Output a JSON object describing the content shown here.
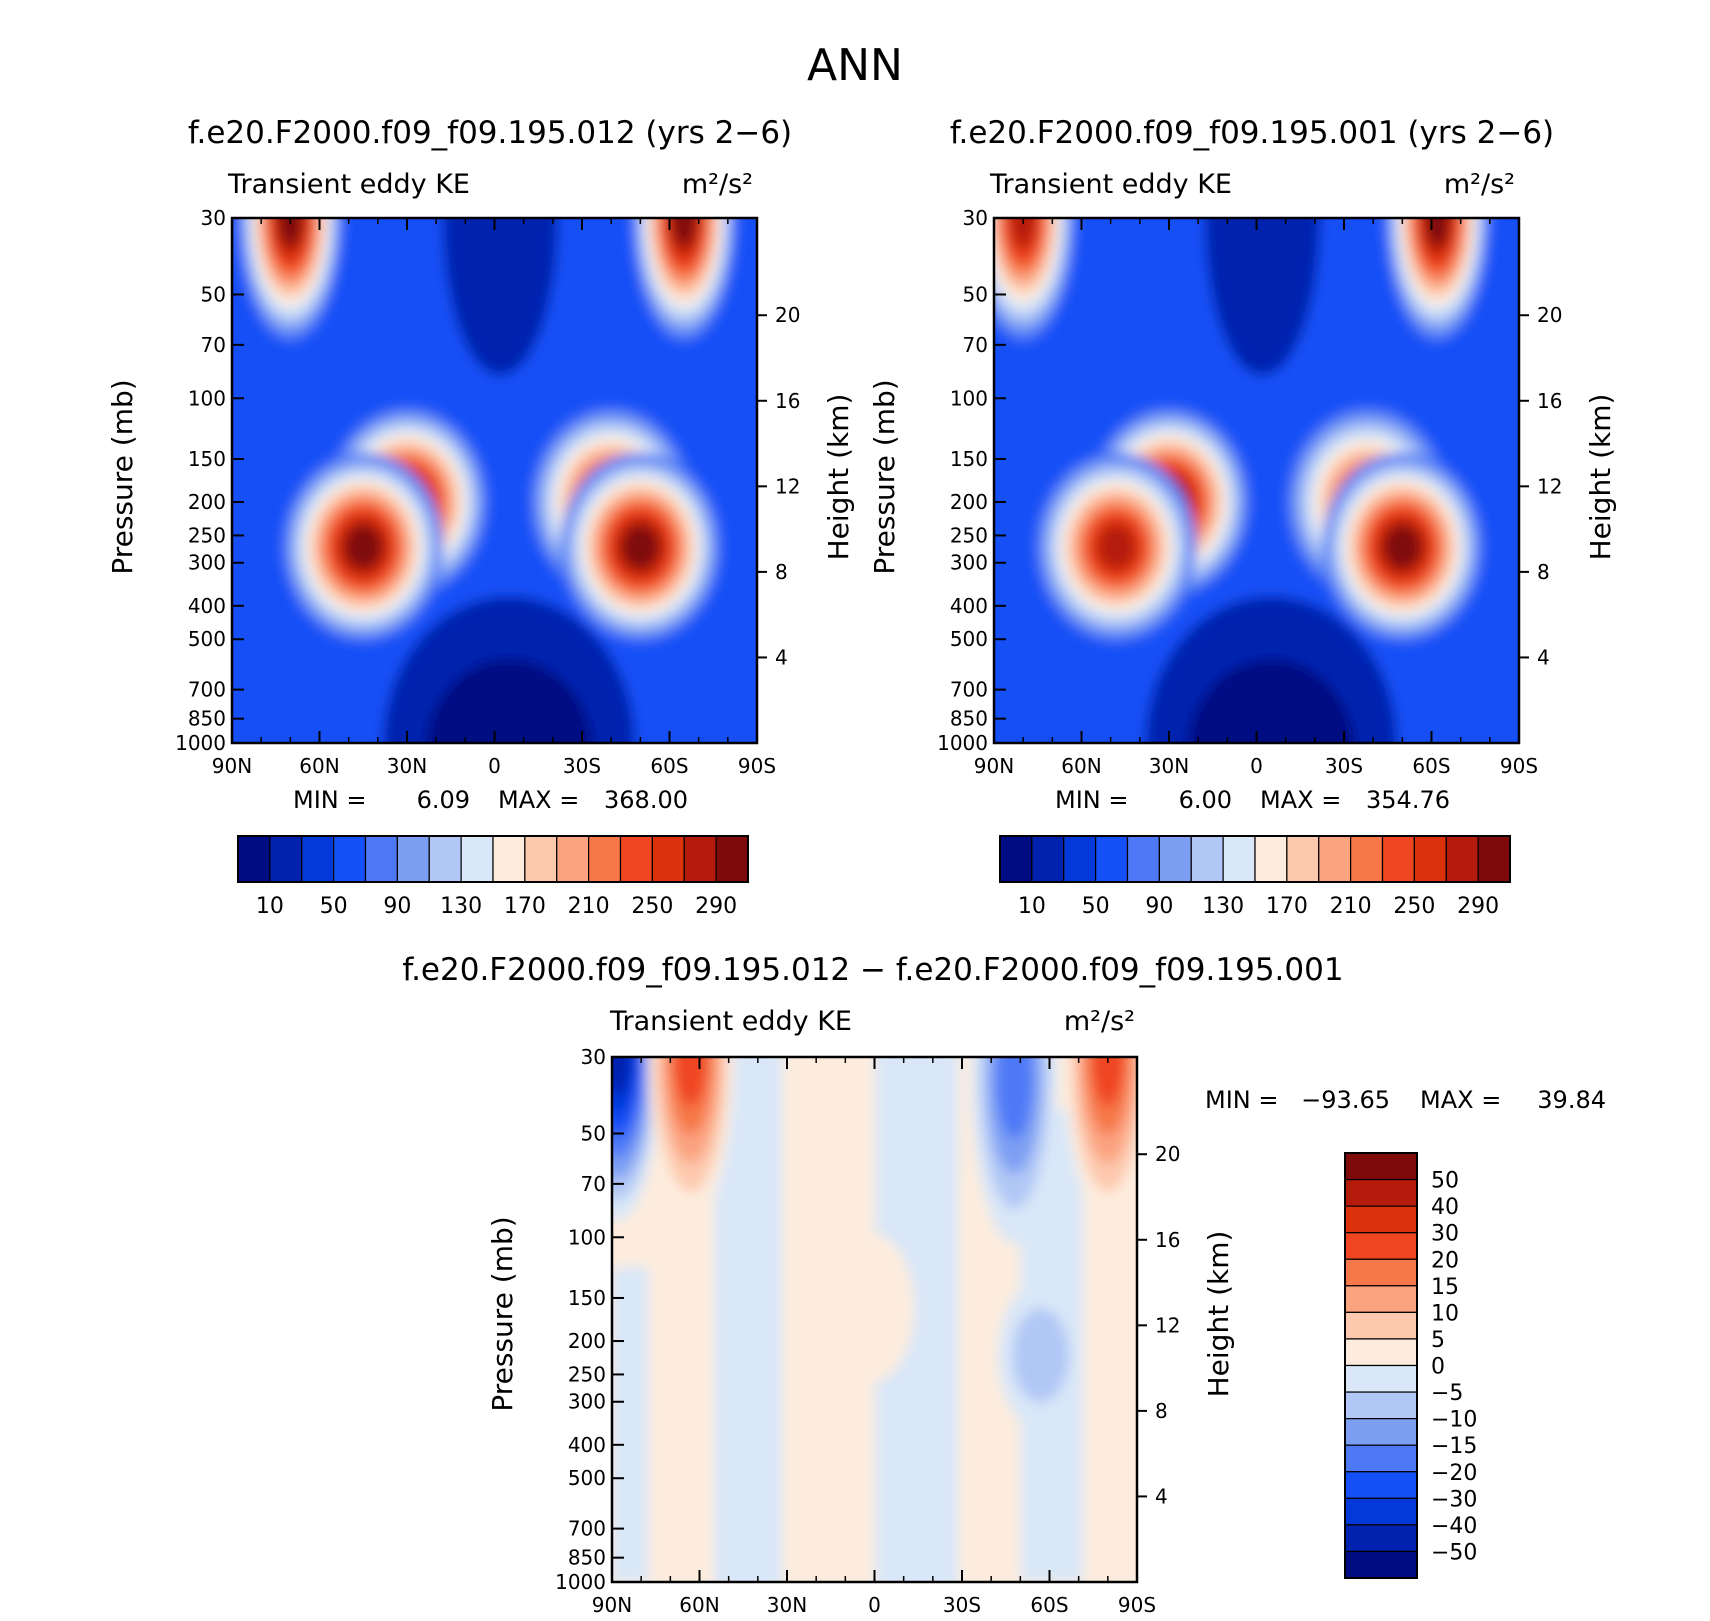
{
  "figure": {
    "title": "ANN"
  },
  "chart_data": [
    {
      "type": "heatmap",
      "title": "f.e20.F2000.f09_f09.195.012 (yrs 2−6)",
      "variable": "Transient eddy KE",
      "units": "m²/s²",
      "xlabel": "",
      "ylabel": "Pressure (mb)",
      "ylabel_right": "Height (km)",
      "x_ticks": [
        "90N",
        "60N",
        "30N",
        "0",
        "30S",
        "60S",
        "90S"
      ],
      "y_ticks": [
        "30",
        "50",
        "70",
        "100",
        "150",
        "200",
        "250",
        "300",
        "400",
        "500",
        "700",
        "850",
        "1000"
      ],
      "y_tick_values": [
        30,
        50,
        70,
        100,
        150,
        200,
        250,
        300,
        400,
        500,
        700,
        850,
        1000
      ],
      "height_ticks": [
        "20",
        "16",
        "12",
        "8",
        "4"
      ],
      "height_tick_values": [
        20,
        16,
        12,
        8,
        4
      ],
      "ylim": [
        1000,
        30
      ],
      "xlim": [
        90,
        -90
      ],
      "y_scale": "log",
      "min_label": "MIN =",
      "min_value": "6.09",
      "max_label": "MAX =",
      "max_value": "368.00",
      "levels": [
        "10",
        "50",
        "90",
        "130",
        "170",
        "210",
        "250",
        "290"
      ],
      "level_step": 20,
      "colorbar_orientation": "horizontal",
      "colors": [
        "#000C82",
        "#0121AF",
        "#0339D9",
        "#1550F6",
        "#4D79F7",
        "#7D9FF3",
        "#B1C7F6",
        "#D9E7F8",
        "#FDECDD",
        "#FDC9AE",
        "#FBA27F",
        "#F67747",
        "#EF4520",
        "#DC320C",
        "#B41B0A",
        "#7F0A0A"
      ],
      "features": [
        {
          "lat": 70,
          "p": 30,
          "peak": 290
        },
        {
          "lat": -65,
          "p": 30,
          "peak": 368
        },
        {
          "lat": 30,
          "p": 200,
          "peak": 310
        },
        {
          "lat": 45,
          "p": 270,
          "peak": 285
        },
        {
          "lat": -40,
          "p": 200,
          "peak": 260
        },
        {
          "lat": -50,
          "p": 270,
          "peak": 300
        }
      ]
    },
    {
      "type": "heatmap",
      "title": "f.e20.F2000.f09_f09.195.001 (yrs 2−6)",
      "variable": "Transient eddy KE",
      "units": "m²/s²",
      "xlabel": "",
      "ylabel": "Pressure (mb)",
      "ylabel_right": "Height (km)",
      "x_ticks": [
        "90N",
        "60N",
        "30N",
        "0",
        "30S",
        "60S",
        "90S"
      ],
      "y_ticks": [
        "30",
        "50",
        "70",
        "100",
        "150",
        "200",
        "250",
        "300",
        "400",
        "500",
        "700",
        "850",
        "1000"
      ],
      "y_tick_values": [
        30,
        50,
        70,
        100,
        150,
        200,
        250,
        300,
        400,
        500,
        700,
        850,
        1000
      ],
      "height_ticks": [
        "20",
        "16",
        "12",
        "8",
        "4"
      ],
      "height_tick_values": [
        20,
        16,
        12,
        8,
        4
      ],
      "ylim": [
        1000,
        30
      ],
      "xlim": [
        90,
        -90
      ],
      "y_scale": "log",
      "min_label": "MIN =",
      "min_value": "6.00",
      "max_label": "MAX =",
      "max_value": "354.76",
      "levels": [
        "10",
        "50",
        "90",
        "130",
        "170",
        "210",
        "250",
        "290"
      ],
      "level_step": 20,
      "colorbar_orientation": "horizontal",
      "colors": [
        "#000C82",
        "#0121AF",
        "#0339D9",
        "#1550F6",
        "#4D79F7",
        "#7D9FF3",
        "#B1C7F6",
        "#D9E7F8",
        "#FDECDD",
        "#FDC9AE",
        "#FBA27F",
        "#F67747",
        "#EF4520",
        "#DC320C",
        "#B41B0A",
        "#7F0A0A"
      ],
      "features": [
        {
          "lat": 80,
          "p": 30,
          "peak": 260
        },
        {
          "lat": -62,
          "p": 30,
          "peak": 355
        },
        {
          "lat": 30,
          "p": 200,
          "peak": 300
        },
        {
          "lat": 48,
          "p": 270,
          "peak": 275
        },
        {
          "lat": -38,
          "p": 200,
          "peak": 250
        },
        {
          "lat": -50,
          "p": 270,
          "peak": 300
        }
      ]
    },
    {
      "type": "heatmap",
      "title": "f.e20.F2000.f09_f09.195.012 − f.e20.F2000.f09_f09.195.001",
      "variable": "Transient eddy KE",
      "units": "m²/s²",
      "xlabel": "",
      "ylabel": "Pressure (mb)",
      "ylabel_right": "Height (km)",
      "x_ticks": [
        "90N",
        "60N",
        "30N",
        "0",
        "30S",
        "60S",
        "90S"
      ],
      "y_ticks": [
        "30",
        "50",
        "70",
        "100",
        "150",
        "200",
        "250",
        "300",
        "400",
        "500",
        "700",
        "850",
        "1000"
      ],
      "y_tick_values": [
        30,
        50,
        70,
        100,
        150,
        200,
        250,
        300,
        400,
        500,
        700,
        850,
        1000
      ],
      "height_ticks": [
        "20",
        "16",
        "12",
        "8",
        "4"
      ],
      "height_tick_values": [
        20,
        16,
        12,
        8,
        4
      ],
      "ylim": [
        1000,
        30
      ],
      "xlim": [
        90,
        -90
      ],
      "y_scale": "log",
      "min_label": "MIN =",
      "min_value": "−93.65",
      "max_label": "MAX =",
      "max_value": "39.84",
      "levels": [
        "50",
        "40",
        "30",
        "20",
        "15",
        "10",
        "5",
        "0",
        "−5",
        "−10",
        "−15",
        "−20",
        "−30",
        "−40",
        "−50"
      ],
      "level_values": [
        50,
        40,
        30,
        20,
        15,
        10,
        5,
        0,
        -5,
        -10,
        -15,
        -20,
        -30,
        -40,
        -50
      ],
      "colorbar_orientation": "vertical",
      "colors": [
        "#000C82",
        "#0121AF",
        "#0339D9",
        "#1550F6",
        "#4D79F7",
        "#7D9FF3",
        "#B1C7F6",
        "#D9E7F8",
        "#FDECDD",
        "#FDC9AE",
        "#FBA27F",
        "#F67747",
        "#EF4520",
        "#DC320C",
        "#B41B0A",
        "#7F0A0A"
      ],
      "features": [
        {
          "lat": 88,
          "p": 30,
          "peak": -93.65
        },
        {
          "lat": 63,
          "p": 30,
          "peak": 30
        },
        {
          "lat": -80,
          "p": 30,
          "peak": 39.84
        },
        {
          "lat": -48,
          "p": 35,
          "peak": -20
        },
        {
          "lat": -57,
          "p": 220,
          "peak": -12
        },
        {
          "lat": 1,
          "p": 160,
          "peak": 8
        }
      ]
    }
  ]
}
